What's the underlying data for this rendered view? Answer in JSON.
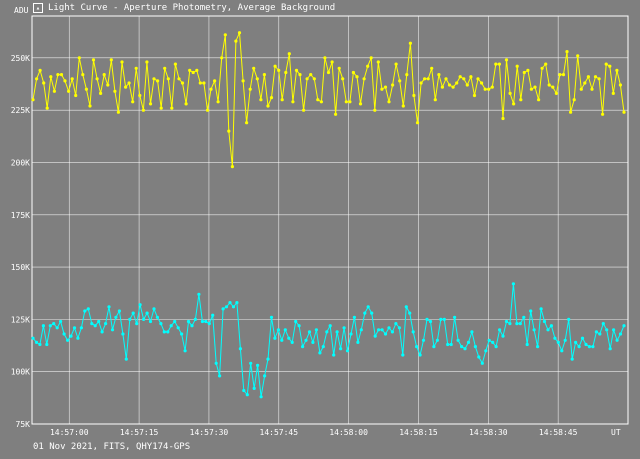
{
  "window": {
    "title": "Light Curve - Aperture Photometry, Average Background",
    "icon": "chart-app-icon",
    "footer": "01 Nov 2021, FITS, QHY174-GPS"
  },
  "chart_data": {
    "type": "line",
    "ylabel": "ADU",
    "xlabel": "UT",
    "ylim": [
      75000,
      270000
    ],
    "xlim": [
      "14:56:52",
      "14:59:00"
    ],
    "grid": true,
    "y_ticks": [
      {
        "value": 75000,
        "label": "75K"
      },
      {
        "value": 100000,
        "label": "100K"
      },
      {
        "value": 125000,
        "label": "125K"
      },
      {
        "value": 150000,
        "label": "150K"
      },
      {
        "value": 175000,
        "label": "175K"
      },
      {
        "value": 200000,
        "label": "200K"
      },
      {
        "value": 225000,
        "label": "225K"
      },
      {
        "value": 250000,
        "label": "250K"
      }
    ],
    "x_ticks": [
      "14:57:00",
      "14:57:15",
      "14:57:30",
      "14:57:45",
      "14:58:00",
      "14:58:15",
      "14:58:30",
      "14:58:45"
    ],
    "series": [
      {
        "color": "#ffff00",
        "values": [
          230,
          240,
          244,
          238,
          226,
          241,
          234,
          242,
          242,
          239,
          234,
          240,
          232,
          250,
          242,
          235,
          227,
          249,
          240,
          233,
          242,
          237,
          249,
          234,
          224,
          248,
          236,
          238,
          229,
          245,
          232,
          225,
          248,
          228,
          240,
          239,
          226,
          245,
          240,
          226,
          247,
          240,
          238,
          228,
          244,
          243,
          244,
          238,
          238,
          225,
          235,
          239,
          229,
          250,
          261,
          215,
          198,
          258,
          262,
          239,
          219,
          235,
          245,
          240,
          230,
          242,
          227,
          231,
          246,
          244,
          230,
          243,
          252,
          229,
          244,
          242,
          225,
          240,
          242,
          240,
          230,
          229,
          250,
          243,
          248,
          223,
          245,
          240,
          229,
          229,
          243,
          241,
          228,
          240,
          246,
          250,
          225,
          248,
          235,
          236,
          229,
          237,
          247,
          239,
          227,
          242,
          257,
          232,
          219,
          238,
          240,
          240,
          245,
          230,
          242,
          236,
          240,
          237,
          236,
          238,
          241,
          240,
          237,
          241,
          232,
          240,
          238,
          235,
          235,
          236,
          247,
          247,
          221,
          249,
          233,
          228,
          246,
          230,
          243,
          244,
          235,
          236,
          230,
          245,
          247,
          237,
          236,
          233,
          242,
          242,
          253,
          224,
          230,
          251,
          235,
          238,
          241,
          235,
          241,
          240,
          223,
          247,
          246,
          233,
          244,
          237,
          224
        ]
      },
      {
        "color": "#00ffff",
        "values": [
          116,
          114,
          113,
          122,
          113,
          122,
          123,
          121,
          124,
          118,
          115,
          117,
          121,
          116,
          121,
          129,
          130,
          123,
          122,
          124,
          119,
          123,
          131,
          120,
          126,
          129,
          118,
          106,
          125,
          128,
          123,
          132,
          125,
          128,
          124,
          130,
          126,
          123,
          119,
          119,
          122,
          124,
          121,
          118,
          110,
          124,
          122,
          125,
          137,
          124,
          124,
          123,
          127,
          104,
          98,
          130,
          131,
          133,
          131,
          133,
          111,
          91,
          89,
          104,
          92,
          103,
          88,
          98,
          106,
          126,
          116,
          120,
          115,
          120,
          116,
          114,
          124,
          122,
          112,
          115,
          119,
          114,
          120,
          109,
          112,
          119,
          122,
          108,
          119,
          111,
          121,
          110,
          118,
          126,
          114,
          120,
          128,
          131,
          128,
          117,
          120,
          120,
          118,
          121,
          119,
          123,
          121,
          108,
          131,
          128,
          119,
          112,
          108,
          115,
          125,
          124,
          112,
          115,
          125,
          125,
          113,
          113,
          126,
          115,
          112,
          111,
          114,
          119,
          112,
          107,
          104,
          110,
          115,
          114,
          112,
          120,
          117,
          124,
          123,
          142,
          123,
          123,
          126,
          113,
          129,
          120,
          112,
          130,
          124,
          120,
          122,
          116,
          114,
          110,
          115,
          125,
          106,
          114,
          112,
          116,
          113,
          112,
          112,
          119,
          118,
          123,
          120,
          111,
          120,
          115,
          118,
          122
        ]
      }
    ]
  }
}
